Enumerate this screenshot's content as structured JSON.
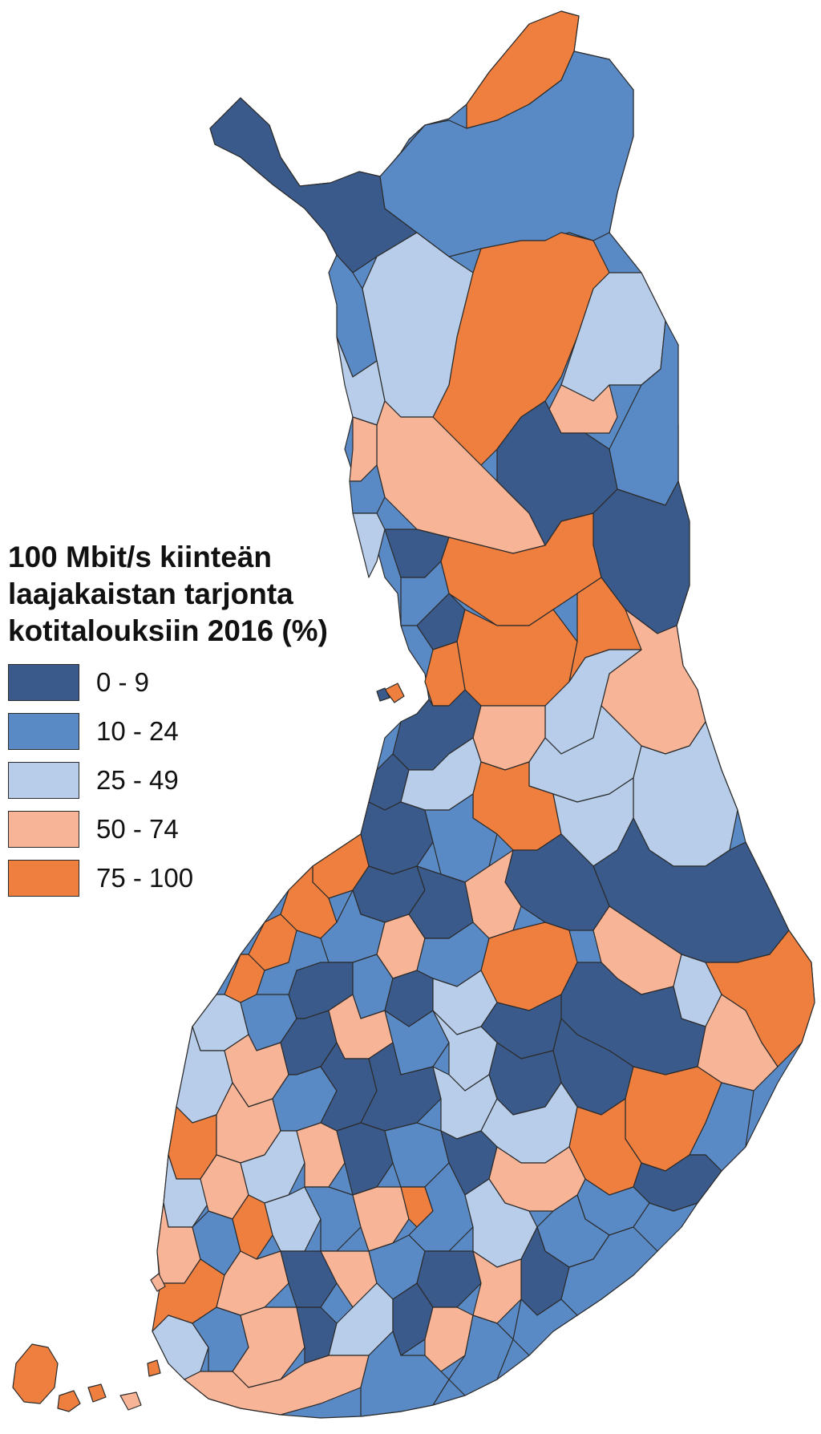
{
  "legend": {
    "title_lines": [
      "100 Mbit/s kiinteän",
      "laajakaistan tarjonta",
      "kotitalouksiin 2016 (%)"
    ],
    "classes": [
      {
        "label": "0 - 9",
        "color": "#3b5a8c"
      },
      {
        "label": "10 - 24",
        "color": "#5a8ac6"
      },
      {
        "label": "25 - 49",
        "color": "#b7cde9"
      },
      {
        "label": "50 - 74",
        "color": "#f7b497"
      },
      {
        "label": "75 - 100",
        "color": "#ef7f3e"
      }
    ]
  }
}
